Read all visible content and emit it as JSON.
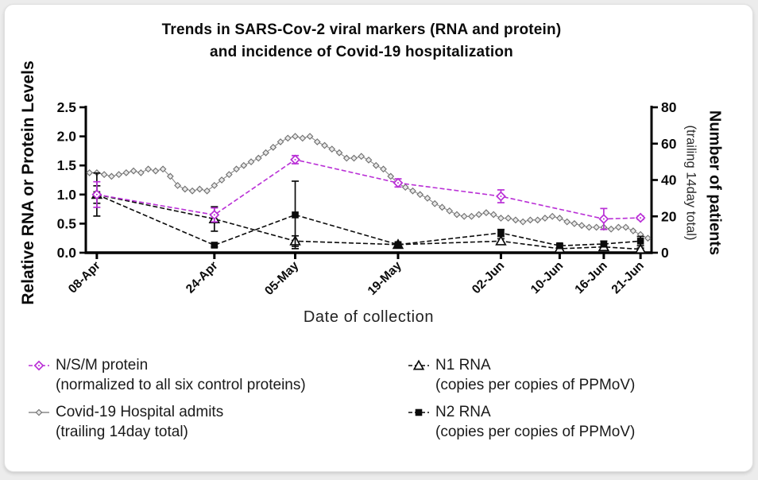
{
  "chart_data": {
    "type": "line",
    "title_line1": "Trends in SARS-Cov-2 viral markers (RNA and protein)",
    "title_line2": "and incidence of Covid-19 hospitalization",
    "xlabel": "Date of collection",
    "ylabel_left": "Relative RNA or Protein Levels",
    "ylabel_right_bold": "Number of patients",
    "ylabel_right_sub": "(trailing 14day total)",
    "x_tick_labels": [
      "08-Apr",
      "24-Apr",
      "05-May",
      "19-May",
      "02-Jun",
      "10-Jun",
      "16-Jun",
      "21-Jun"
    ],
    "x_tick_days": [
      0,
      16,
      27,
      41,
      55,
      63,
      69,
      74
    ],
    "x_domain_days": [
      -1.5,
      75.5
    ],
    "y_left": {
      "min": 0.0,
      "max": 2.5,
      "ticks": [
        "0.0",
        "0.5",
        "1.0",
        "1.5",
        "2.0",
        "2.5"
      ]
    },
    "y_right": {
      "min": 0,
      "max": 80,
      "ticks": [
        "0",
        "20",
        "40",
        "60",
        "80"
      ]
    },
    "grid": "off",
    "legend_position": "below",
    "sample_days": [
      0,
      16,
      27,
      41,
      55,
      63,
      69,
      74
    ],
    "sample_dates": [
      "08-Apr",
      "24-Apr",
      "05-May",
      "19-May",
      "02-Jun",
      "10-Jun",
      "16-Jun",
      "21-Jun"
    ],
    "series": [
      {
        "name": "N/S/M protein",
        "subtitle": "(normalized to all six control proteins)",
        "axis": "left",
        "color": "#b92fd6",
        "marker": "diamond-open",
        "line_style": "dashed",
        "values": [
          1.0,
          0.65,
          1.6,
          1.2,
          0.97,
          null,
          0.58,
          0.6
        ],
        "errors": [
          0.22,
          0.12,
          0.07,
          0.07,
          0.11,
          null,
          0.18,
          0.03
        ]
      },
      {
        "name": "Covid-19 Hospital admits",
        "subtitle": "(trailing 14day total)",
        "axis": "right",
        "color": "#8a8a8a",
        "marker": "diamond-small-open",
        "line_style": "solid",
        "start_day": -1,
        "start_date": "07-Apr",
        "end_date": "22-Jun",
        "daily_values": [
          44,
          44,
          43,
          42,
          43,
          44,
          45,
          44,
          46,
          45,
          46,
          42,
          37,
          35,
          34,
          35,
          34,
          37,
          40,
          43,
          46,
          48,
          50,
          52,
          55,
          58,
          61,
          63,
          64,
          63,
          64,
          61,
          59,
          57,
          55,
          52,
          52,
          53,
          51,
          48,
          46,
          42,
          38,
          36,
          34,
          32,
          30,
          27,
          25,
          23,
          21,
          20,
          20,
          21,
          22,
          21,
          19,
          19,
          18,
          17,
          18,
          18,
          19,
          20,
          19,
          17,
          16,
          15,
          14,
          14,
          14,
          13,
          14,
          14,
          12,
          10,
          8
        ]
      },
      {
        "name": "N1 RNA",
        "subtitle": "(copies per copies of PPMoV)",
        "axis": "left",
        "color": "#0b0b0b",
        "marker": "triangle-open",
        "line_style": "dashed",
        "values": [
          1.0,
          0.58,
          0.2,
          0.14,
          0.2,
          0.07,
          0.1,
          0.06
        ],
        "errors": [
          0.15,
          0.21,
          0.09,
          0.03,
          0.04,
          0.02,
          0.03,
          0.02
        ]
      },
      {
        "name": "N2 RNA",
        "subtitle": "(copies per copies of PPMoV)",
        "axis": "left",
        "color": "#0b0b0b",
        "marker": "square-filled",
        "line_style": "dashed",
        "values": [
          1.0,
          0.13,
          0.65,
          0.14,
          0.34,
          0.12,
          0.15,
          0.2
        ],
        "errors": [
          0.37,
          0.03,
          0.58,
          0.03,
          0.06,
          0.03,
          0.05,
          0.08
        ]
      }
    ]
  }
}
